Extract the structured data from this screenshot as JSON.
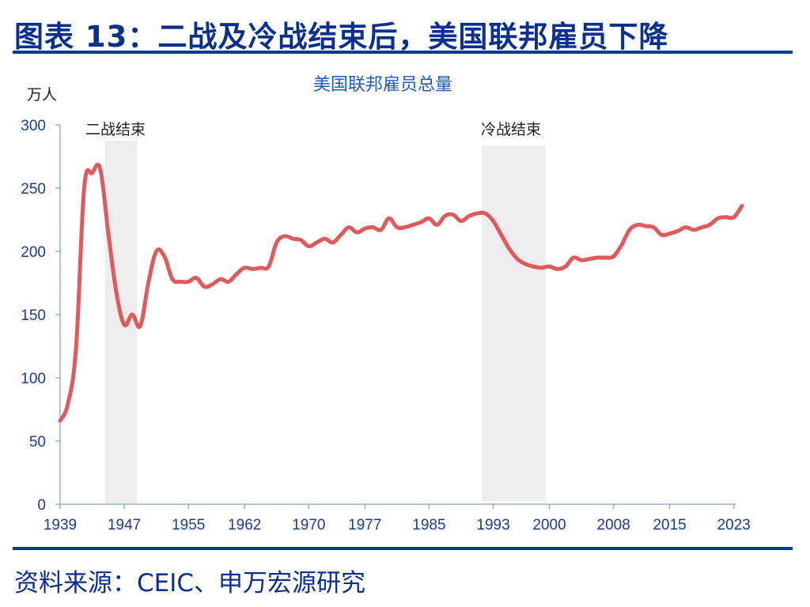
{
  "header": {
    "title": "图表 13：二战及冷战结束后，美国联邦雇员下降"
  },
  "footer": {
    "source": "资料来源：CEIC、申万宏源研究"
  },
  "colors": {
    "title": "#0a2f8f",
    "rule": "#0a3a9a",
    "line": "#e05a5c",
    "shade": "#ededed",
    "axis": "#7fa3cc",
    "tick_label": "#1e3c8c"
  },
  "chart_data": {
    "type": "line",
    "title": "美国联邦雇员总量",
    "ylabel": "万人",
    "xlabel": "",
    "ylim": [
      0,
      300
    ],
    "xlim": [
      1939,
      2024
    ],
    "grid": false,
    "yticks": [
      0,
      50,
      100,
      150,
      200,
      250,
      300
    ],
    "xticks": [
      1939,
      1947,
      1955,
      1962,
      1970,
      1977,
      1985,
      1993,
      2000,
      2008,
      2015,
      2023
    ],
    "series": [
      {
        "name": "美国联邦雇员总量",
        "x": [
          1939,
          1940,
          1941,
          1942,
          1943,
          1944,
          1945,
          1946,
          1947,
          1948,
          1949,
          1950,
          1951,
          1952,
          1953,
          1954,
          1955,
          1956,
          1957,
          1958,
          1959,
          1960,
          1961,
          1962,
          1963,
          1964,
          1965,
          1966,
          1967,
          1968,
          1969,
          1970,
          1971,
          1972,
          1973,
          1974,
          1975,
          1976,
          1977,
          1978,
          1979,
          1980,
          1981,
          1982,
          1983,
          1984,
          1985,
          1986,
          1987,
          1988,
          1989,
          1990,
          1991,
          1992,
          1993,
          1994,
          1995,
          1996,
          1997,
          1998,
          1999,
          2000,
          2001,
          2002,
          2003,
          2004,
          2005,
          2006,
          2007,
          2008,
          2009,
          2010,
          2011,
          2012,
          2013,
          2014,
          2015,
          2016,
          2017,
          2018,
          2019,
          2020,
          2021,
          2022,
          2023,
          2024
        ],
        "values": [
          66,
          80,
          125,
          250,
          262,
          265,
          215,
          168,
          142,
          150,
          141,
          175,
          200,
          196,
          178,
          176,
          176,
          179,
          172,
          174,
          178,
          176,
          182,
          187,
          186,
          187,
          188,
          207,
          212,
          210,
          209,
          204,
          207,
          210,
          207,
          213,
          219,
          215,
          218,
          219,
          217,
          226,
          219,
          219,
          221,
          223,
          226,
          221,
          228,
          229,
          224,
          228,
          230,
          230,
          224,
          213,
          202,
          194,
          190,
          188,
          187,
          188,
          186,
          188,
          195,
          193,
          194,
          195,
          195,
          196,
          205,
          217,
          221,
          220,
          219,
          213,
          214,
          216,
          219,
          217,
          219,
          221,
          226,
          227,
          227,
          236
        ]
      }
    ],
    "shaded_regions": [
      {
        "label": "二战结束",
        "x_start": 1944.6,
        "x_end": 1948.6
      },
      {
        "label": "冷战结束",
        "x_start": 1991.6,
        "x_end": 1999.5
      }
    ],
    "annotations": [
      {
        "text": "二战结束",
        "x": 1946.5
      },
      {
        "text": "冷战结束",
        "x": 1995.5
      }
    ]
  }
}
